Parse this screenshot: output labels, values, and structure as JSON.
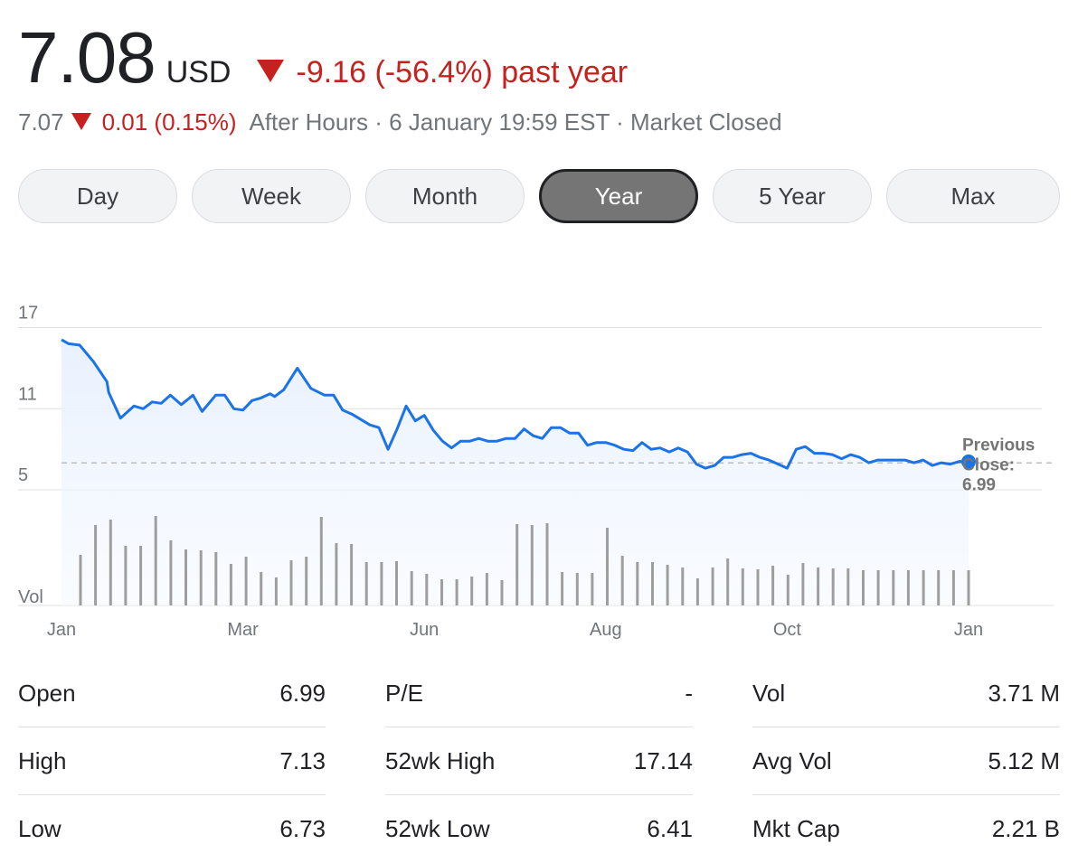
{
  "quote": {
    "price": "7.08",
    "currency": "USD",
    "change_text": "-9.16 (-56.4%) past year",
    "after_hours_price": "7.07",
    "after_hours_change": "0.01 (0.15%)",
    "after_hours_info": "After Hours · 6 January 19:59 EST · Market Closed"
  },
  "tabs": [
    {
      "label": "Day",
      "active": false
    },
    {
      "label": "Week",
      "active": false
    },
    {
      "label": "Month",
      "active": false
    },
    {
      "label": "Year",
      "active": true
    },
    {
      "label": "5 Year",
      "active": false
    },
    {
      "label": "Max",
      "active": false
    }
  ],
  "chart_data": {
    "type": "line",
    "y_ticks": [
      "17",
      "11",
      "5"
    ],
    "y_tick_values": [
      17,
      11,
      5
    ],
    "volume_label": "Vol",
    "x_ticks": [
      "Jan",
      "Mar",
      "Jun",
      "Aug",
      "Oct",
      "Jan"
    ],
    "x_tick_months": [
      0,
      2,
      4,
      6,
      8,
      10
    ],
    "ylim": [
      3.8,
      17.5
    ],
    "previous_close_label": [
      "Previous",
      "Close:",
      "6.99"
    ],
    "previous_close": 6.99,
    "x_months": [
      0,
      0.08,
      0.2,
      0.35,
      0.5,
      0.52,
      0.65,
      0.8,
      0.9,
      1.0,
      1.1,
      1.2,
      1.32,
      1.45,
      1.55,
      1.7,
      1.8,
      1.9,
      2.0,
      2.1,
      2.2,
      2.3,
      2.35,
      2.45,
      2.6,
      2.75,
      2.9,
      3.0,
      3.1,
      3.2,
      3.3,
      3.4,
      3.5,
      3.6,
      3.7,
      3.8,
      3.9,
      4.0,
      4.1,
      4.2,
      4.3,
      4.4,
      4.5,
      4.6,
      4.7,
      4.8,
      4.9,
      5.0,
      5.1,
      5.2,
      5.3,
      5.4,
      5.5,
      5.6,
      5.7,
      5.8,
      5.9,
      6.0,
      6.1,
      6.2,
      6.3,
      6.4,
      6.5,
      6.6,
      6.7,
      6.8,
      6.9,
      7.0,
      7.1,
      7.2,
      7.3,
      7.4,
      7.5,
      7.6,
      7.7,
      7.8,
      7.9,
      8.0,
      8.1,
      8.2,
      8.3,
      8.4,
      8.5,
      8.6,
      8.7,
      8.8,
      8.9,
      9.0,
      9.1,
      9.2,
      9.3,
      9.4,
      9.5,
      9.6,
      9.7,
      9.8,
      9.9,
      10.0
    ],
    "values": [
      16.1,
      15.8,
      15.7,
      14.5,
      13.0,
      12.2,
      10.3,
      11.2,
      11.0,
      11.5,
      11.4,
      12.0,
      11.3,
      12.0,
      10.8,
      12.0,
      12.0,
      11.0,
      10.9,
      11.6,
      11.8,
      12.1,
      11.9,
      12.4,
      14.0,
      12.5,
      12.0,
      12.0,
      10.9,
      10.6,
      10.2,
      9.8,
      9.6,
      8.0,
      9.5,
      11.2,
      10.1,
      10.5,
      9.4,
      8.6,
      8.1,
      8.6,
      8.6,
      8.8,
      8.6,
      8.6,
      8.8,
      8.8,
      9.5,
      9.0,
      8.8,
      9.6,
      9.6,
      9.2,
      9.2,
      8.3,
      8.5,
      8.5,
      8.3,
      8.0,
      7.9,
      8.5,
      8.0,
      8.1,
      7.8,
      8.1,
      7.8,
      6.9,
      6.6,
      6.8,
      7.4,
      7.4,
      7.6,
      7.7,
      7.4,
      7.2,
      6.9,
      6.6,
      8.0,
      8.2,
      7.7,
      7.7,
      7.6,
      7.3,
      7.6,
      7.4,
      7.0,
      7.2,
      7.2,
      7.2,
      7.2,
      7.0,
      7.2,
      6.8,
      7.0,
      6.9,
      7.1,
      7.08
    ],
    "volume_months": [
      0.1,
      0.2,
      0.3,
      0.4,
      0.5,
      0.6,
      0.7,
      0.8,
      0.9,
      1.0,
      1.1,
      1.2,
      1.3,
      1.4,
      1.5,
      1.6,
      1.7,
      1.8,
      1.9,
      2.0,
      2.1,
      2.2,
      2.3,
      2.4,
      2.5,
      2.6,
      2.7,
      2.8,
      2.9,
      3.0,
      3.1,
      3.2,
      3.3,
      3.4,
      3.5,
      3.6,
      3.7,
      3.8,
      3.9,
      4.0,
      4.1,
      4.2,
      4.3,
      4.4,
      4.5,
      4.6,
      4.7,
      4.8,
      4.9,
      5.0,
      5.1,
      5.2,
      5.3,
      5.4,
      5.5,
      5.6,
      5.7,
      5.8,
      5.9,
      6.0
    ],
    "volume_relative": [
      0.56,
      0.89,
      0.95,
      0.66,
      0.66,
      0.99,
      0.72,
      0.62,
      0.61,
      0.59,
      0.46,
      0.54,
      0.37,
      0.31,
      0.5,
      0.54,
      0.98,
      0.69,
      0.68,
      0.48,
      0.48,
      0.49,
      0.38,
      0.35,
      0.29,
      0.29,
      0.32,
      0.36,
      0.28,
      0.9,
      0.89,
      0.91,
      0.37,
      0.36,
      0.36,
      0.86,
      0.55,
      0.48,
      0.48,
      0.45,
      0.42,
      0.3,
      0.42,
      0.52,
      0.41,
      0.4,
      0.44,
      0.34,
      0.47,
      0.42,
      0.41,
      0.41,
      0.39,
      0.39,
      0.39,
      0.39,
      0.39,
      0.39,
      0.39,
      0.39
    ]
  },
  "stats": [
    [
      {
        "label": "Open",
        "value": "6.99"
      },
      {
        "label": "High",
        "value": "7.13"
      },
      {
        "label": "Low",
        "value": "6.73"
      }
    ],
    [
      {
        "label": "P/E",
        "value": "-"
      },
      {
        "label": "52wk High",
        "value": "17.14"
      },
      {
        "label": "52wk Low",
        "value": "6.41"
      }
    ],
    [
      {
        "label": "Vol",
        "value": "3.71 M"
      },
      {
        "label": "Avg Vol",
        "value": "5.12 M"
      },
      {
        "label": "Mkt Cap",
        "value": "2.21 B"
      }
    ]
  ],
  "colors": {
    "negative": "#c5221f",
    "line": "#1a73e8",
    "volume": "#9e9e9e"
  }
}
